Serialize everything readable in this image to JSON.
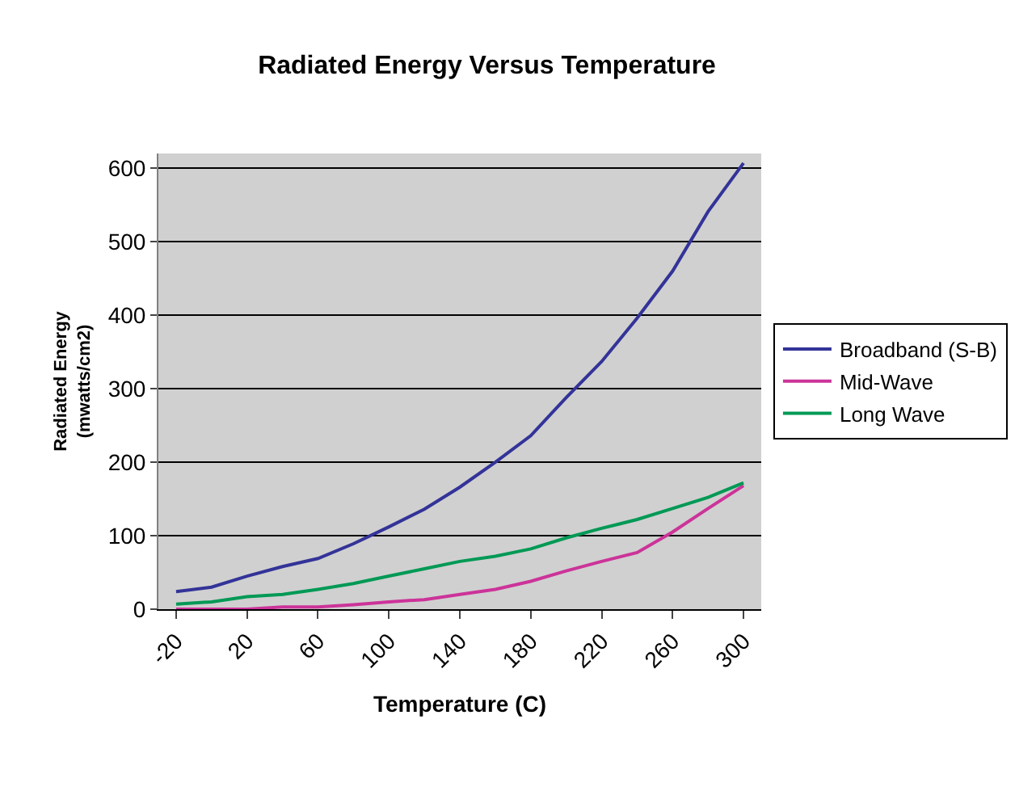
{
  "chart_data": {
    "type": "line",
    "title": "Radiated Energy Versus Temperature",
    "xlabel": "Temperature (C)",
    "ylabel": "Radiated Energy\n(mwatts/cm2)",
    "categories": [
      "-20",
      null,
      "20",
      null,
      "60",
      null,
      "100",
      null,
      "140",
      null,
      "180",
      null,
      "220",
      null,
      "260",
      null,
      "300"
    ],
    "series": [
      {
        "name": "Broadband (S-B)",
        "color": "#333399",
        "values": [
          24,
          30,
          45,
          58,
          69,
          89,
          112,
          136,
          166,
          200,
          236,
          288,
          337,
          396,
          460,
          541,
          607
        ]
      },
      {
        "name": "Mid-Wave",
        "color": "#cc3399",
        "values": [
          0,
          0,
          0,
          3,
          3,
          6,
          10,
          13,
          20,
          27,
          38,
          52,
          65,
          77,
          105,
          137,
          168
        ]
      },
      {
        "name": "Long Wave",
        "color": "#009955",
        "values": [
          7,
          10,
          17,
          20,
          27,
          35,
          45,
          55,
          65,
          72,
          82,
          97,
          110,
          122,
          137,
          152,
          172
        ]
      }
    ],
    "ylim": [
      0,
      620
    ],
    "yticks": [
      0,
      100,
      200,
      300,
      400,
      500,
      600
    ],
    "grid": "y",
    "legend": "right",
    "marker": "none",
    "line_style": "solid"
  }
}
